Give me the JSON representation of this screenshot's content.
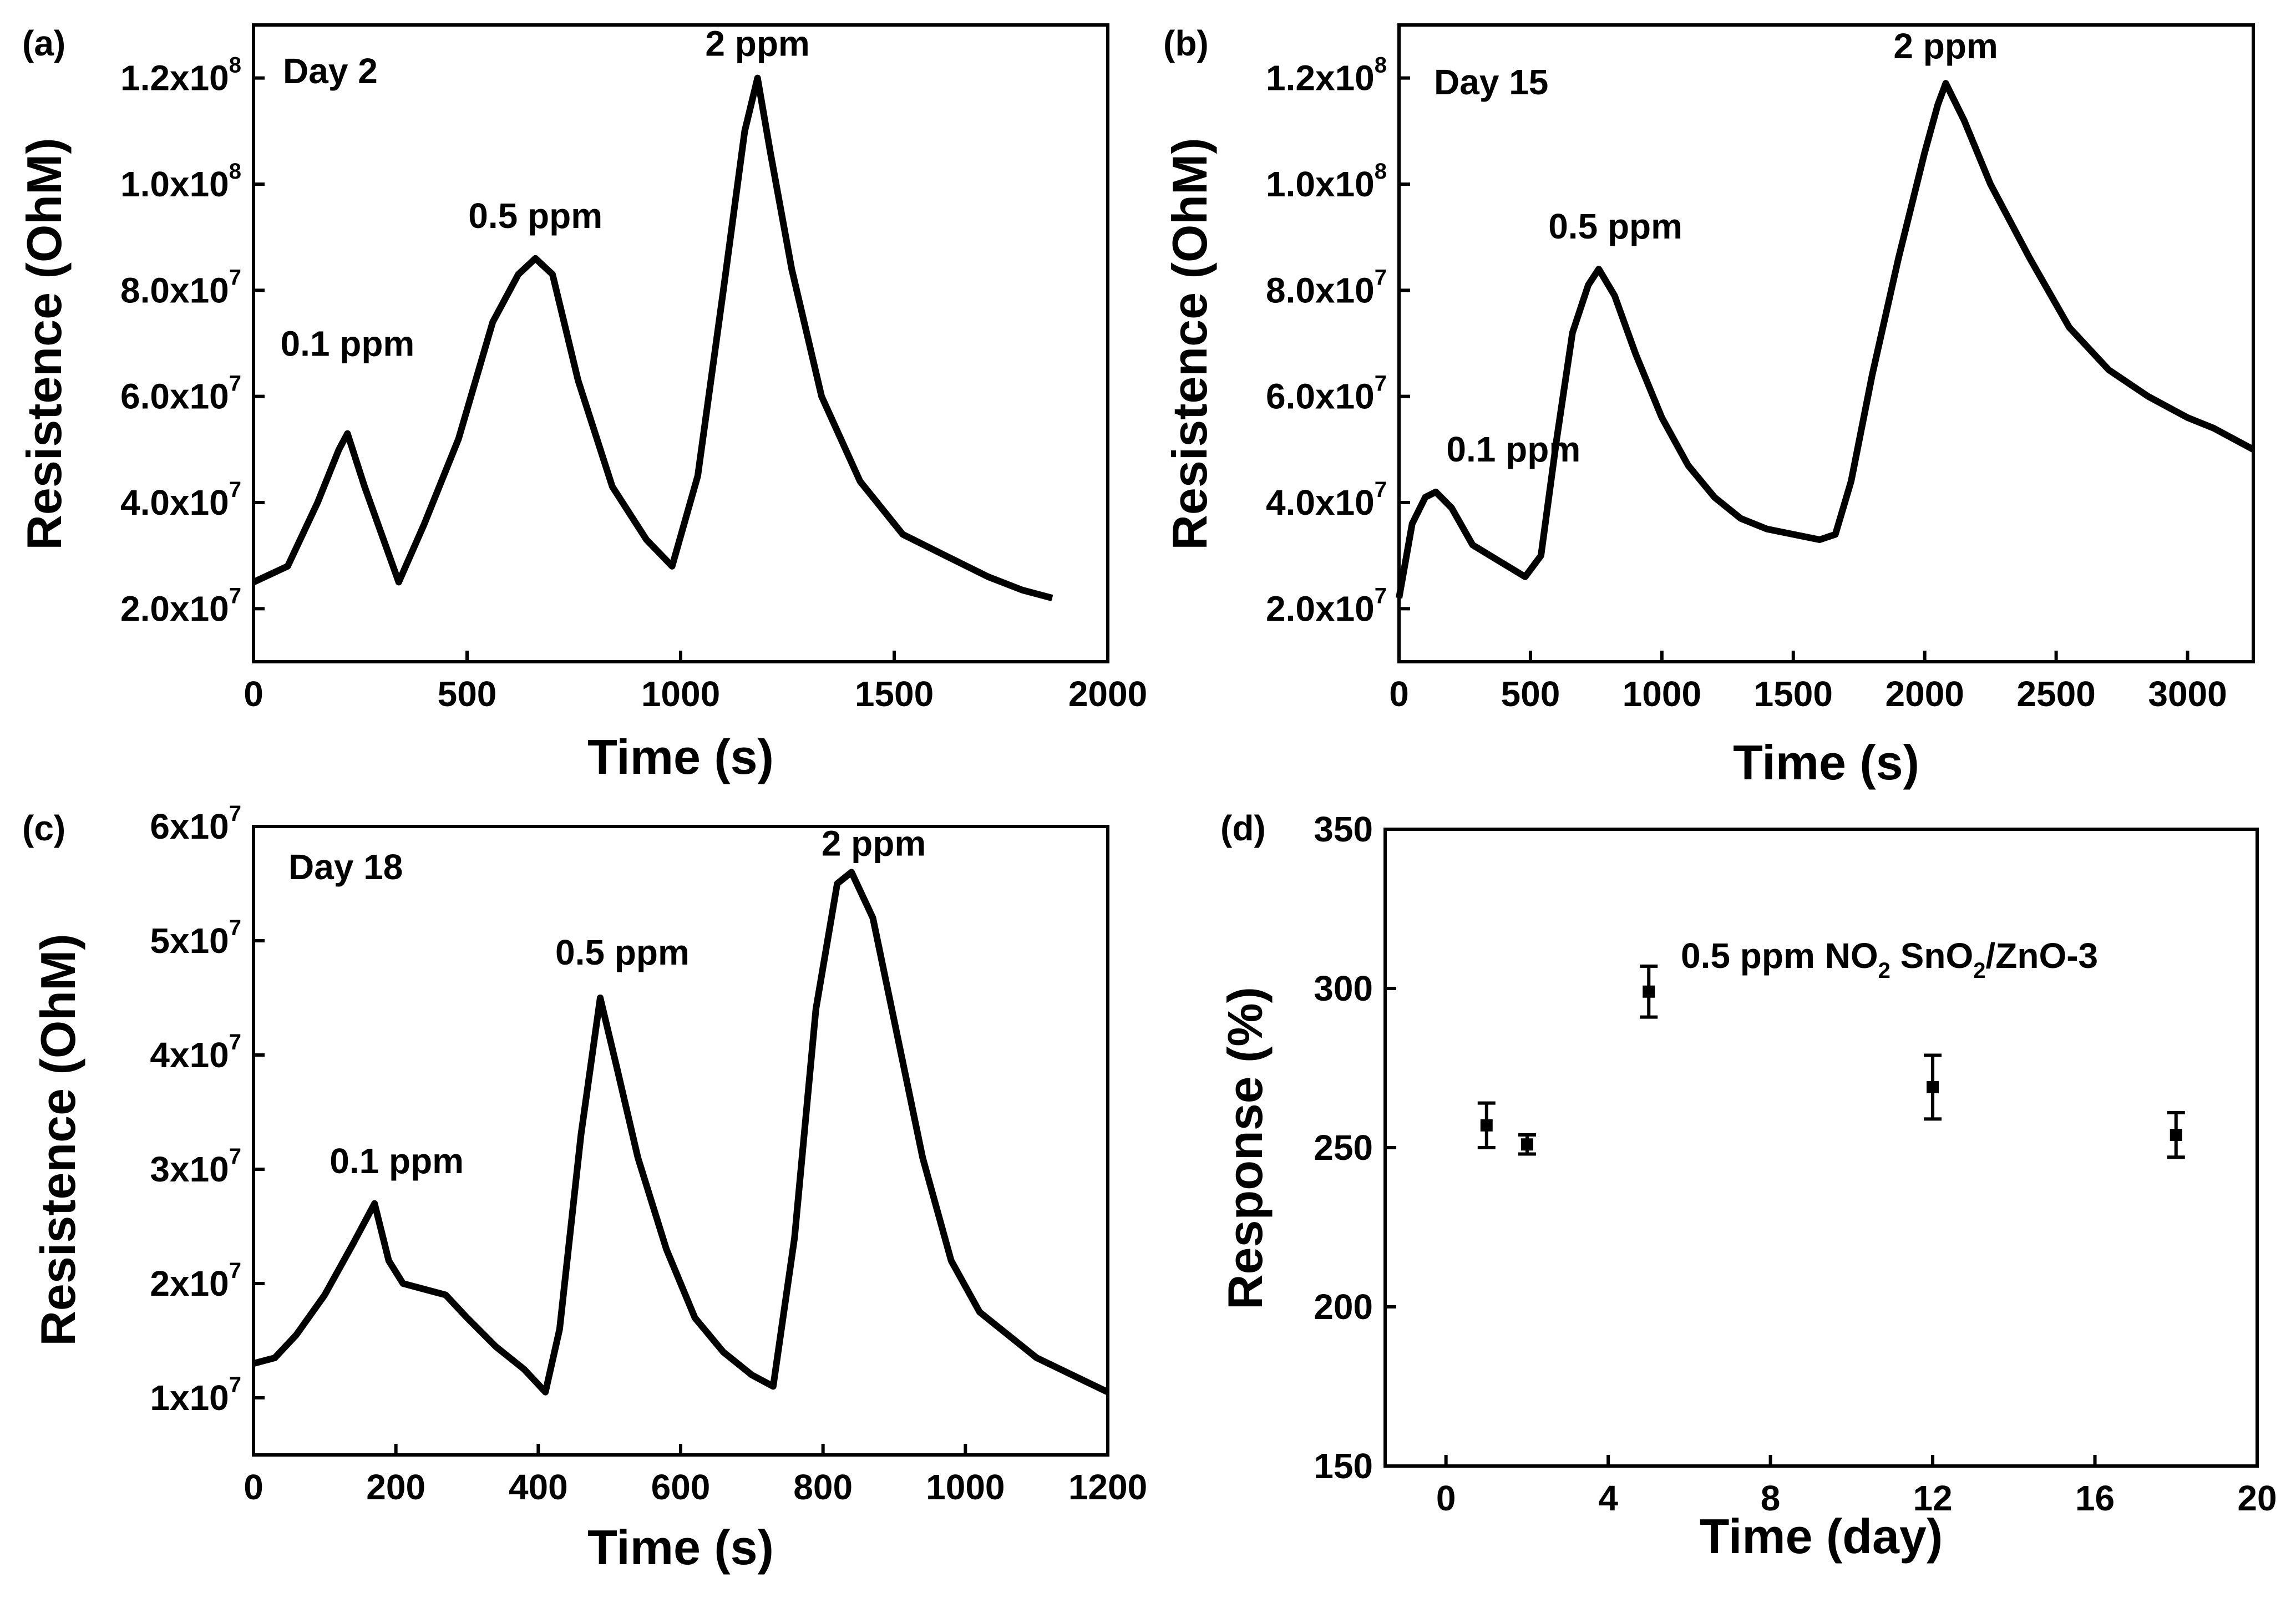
{
  "colors": {
    "line": "#000000",
    "background": "#ffffff"
  },
  "chart_data": [
    {
      "panel": "(a)",
      "type": "line",
      "annotation_day": "Day 2",
      "xlabel": "Time (s)",
      "ylabel": "Resistence (OhM)",
      "xlim": [
        0,
        2000
      ],
      "ylim": [
        10000000.0,
        130000000.0
      ],
      "xticks": [
        0,
        500,
        1000,
        1500,
        2000
      ],
      "yticks": [
        {
          "value": 20000000.0,
          "mantissa": "2.0x10",
          "exp": "7"
        },
        {
          "value": 40000000.0,
          "mantissa": "4.0x10",
          "exp": "7"
        },
        {
          "value": 60000000.0,
          "mantissa": "6.0x10",
          "exp": "7"
        },
        {
          "value": 80000000.0,
          "mantissa": "8.0x10",
          "exp": "7"
        },
        {
          "value": 100000000.0,
          "mantissa": "1.0x10",
          "exp": "8"
        },
        {
          "value": 120000000.0,
          "mantissa": "1.2x10",
          "exp": "8"
        }
      ],
      "peaks": [
        {
          "label": "0.1 ppm",
          "x": 220,
          "y": 53000000.0
        },
        {
          "label": "0.5 ppm",
          "x": 660,
          "y": 86000000.0
        },
        {
          "label": "2 ppm",
          "x": 1180,
          "y": 120000000.0
        }
      ],
      "x": [
        0,
        80,
        150,
        200,
        220,
        260,
        340,
        400,
        480,
        560,
        620,
        660,
        700,
        760,
        840,
        920,
        980,
        1040,
        1100,
        1150,
        1180,
        1210,
        1260,
        1330,
        1420,
        1520,
        1620,
        1720,
        1800,
        1870
      ],
      "y": [
        25000000.0,
        28000000.0,
        40000000.0,
        50000000.0,
        53000000.0,
        43000000.0,
        25000000.0,
        36000000.0,
        52000000.0,
        74000000.0,
        83000000.0,
        86000000.0,
        83000000.0,
        63000000.0,
        43000000.0,
        33000000.0,
        28000000.0,
        45000000.0,
        80000000.0,
        110000000.0,
        120000000.0,
        106000000.0,
        84000000.0,
        60000000.0,
        44000000.0,
        34000000.0,
        30000000.0,
        26000000.0,
        23500000.0,
        22000000.0
      ]
    },
    {
      "panel": "(b)",
      "type": "line",
      "annotation_day": "Day 15",
      "xlabel": "Time (s)",
      "ylabel": "Resistence (OhM)",
      "xlim": [
        0,
        3250
      ],
      "ylim": [
        10000000.0,
        130000000.0
      ],
      "xticks": [
        0,
        500,
        1000,
        1500,
        2000,
        2500,
        3000
      ],
      "yticks": [
        {
          "value": 20000000.0,
          "mantissa": "2.0x10",
          "exp": "7"
        },
        {
          "value": 40000000.0,
          "mantissa": "4.0x10",
          "exp": "7"
        },
        {
          "value": 60000000.0,
          "mantissa": "6.0x10",
          "exp": "7"
        },
        {
          "value": 80000000.0,
          "mantissa": "8.0x10",
          "exp": "7"
        },
        {
          "value": 100000000.0,
          "mantissa": "1.0x10",
          "exp": "8"
        },
        {
          "value": 120000000.0,
          "mantissa": "1.2x10",
          "exp": "8"
        }
      ],
      "peaks": [
        {
          "label": "0.1 ppm",
          "x": 140,
          "y": 42000000.0
        },
        {
          "label": "0.5 ppm",
          "x": 760,
          "y": 84000000.0
        },
        {
          "label": "2 ppm",
          "x": 2080,
          "y": 119000000.0
        }
      ],
      "x": [
        0,
        50,
        100,
        140,
        200,
        280,
        380,
        480,
        540,
        600,
        660,
        720,
        760,
        820,
        900,
        1000,
        1100,
        1200,
        1300,
        1400,
        1500,
        1600,
        1660,
        1720,
        1800,
        1900,
        2000,
        2050,
        2080,
        2150,
        2250,
        2400,
        2550,
        2700,
        2850,
        3000,
        3100,
        3250
      ],
      "y": [
        22000000.0,
        36000000.0,
        41000000.0,
        42000000.0,
        39000000.0,
        32000000.0,
        29000000.0,
        26000000.0,
        30000000.0,
        52000000.0,
        72000000.0,
        81000000.0,
        84000000.0,
        79000000.0,
        68000000.0,
        56000000.0,
        47000000.0,
        41000000.0,
        37000000.0,
        35000000.0,
        34000000.0,
        33000000.0,
        34000000.0,
        44000000.0,
        64000000.0,
        86000000.0,
        106000000.0,
        115000000.0,
        119000000.0,
        112000000.0,
        100000000.0,
        86000000.0,
        73000000.0,
        65000000.0,
        60000000.0,
        56000000.0,
        54000000.0,
        50000000.0
      ]
    },
    {
      "panel": "(c)",
      "type": "line",
      "annotation_day": "Day 18",
      "xlabel": "Time (s)",
      "ylabel": "Resistence (OhM)",
      "xlim": [
        0,
        1200
      ],
      "ylim": [
        5000000.0,
        60000000.0
      ],
      "xticks": [
        0,
        200,
        400,
        600,
        800,
        1000,
        1200
      ],
      "yticks": [
        {
          "value": 10000000.0,
          "mantissa": "1x10",
          "exp": "7"
        },
        {
          "value": 20000000.0,
          "mantissa": "2x10",
          "exp": "7"
        },
        {
          "value": 30000000.0,
          "mantissa": "3x10",
          "exp": "7"
        },
        {
          "value": 40000000.0,
          "mantissa": "4x10",
          "exp": "7"
        },
        {
          "value": 50000000.0,
          "mantissa": "5x10",
          "exp": "7"
        },
        {
          "value": 60000000.0,
          "mantissa": "6x10",
          "exp": "7"
        }
      ],
      "peaks": [
        {
          "label": "0.1 ppm",
          "x": 170,
          "y": 27000000.0
        },
        {
          "label": "0.5 ppm",
          "x": 487,
          "y": 45000000.0
        },
        {
          "label": "2 ppm",
          "x": 840,
          "y": 56000000.0
        }
      ],
      "x": [
        0,
        30,
        60,
        100,
        140,
        170,
        190,
        210,
        240,
        270,
        300,
        340,
        380,
        410,
        430,
        460,
        487,
        510,
        540,
        580,
        620,
        660,
        700,
        730,
        760,
        790,
        820,
        840,
        870,
        900,
        940,
        980,
        1020,
        1060,
        1100,
        1150,
        1200
      ],
      "y": [
        13000000.0,
        13500000.0,
        15500000.0,
        19000000.0,
        23500000.0,
        27000000.0,
        22000000.0,
        20000000.0,
        19500000.0,
        19000000.0,
        17000000.0,
        14500000.0,
        12500000.0,
        10500000.0,
        16000000.0,
        33000000.0,
        45000000.0,
        39000000.0,
        31000000.0,
        23000000.0,
        17000000.0,
        14000000.0,
        12000000.0,
        11000000.0,
        24000000.0,
        44000000.0,
        55000000.0,
        56000000.0,
        52000000.0,
        43000000.0,
        31000000.0,
        22000000.0,
        17500000.0,
        15500000.0,
        13500000.0,
        12000000.0,
        10500000.0
      ]
    },
    {
      "panel": "(d)",
      "type": "scatter",
      "annotation": {
        "main": "0.5 ppm NO",
        "sub1": "2",
        "mid": " SnO",
        "sub2": "2",
        "tail": "/ZnO-3"
      },
      "xlabel": "Time (day)",
      "ylabel": "Response (%)",
      "xlim": [
        -1.5,
        20
      ],
      "ylim": [
        150,
        350
      ],
      "xticks": [
        0,
        4,
        8,
        12,
        16,
        20
      ],
      "yticks": [
        150,
        200,
        250,
        300,
        350
      ],
      "points": [
        {
          "x": 1,
          "y": 257,
          "err": 7
        },
        {
          "x": 2,
          "y": 251,
          "err": 3
        },
        {
          "x": 5,
          "y": 299,
          "err": 8
        },
        {
          "x": 12,
          "y": 269,
          "err": 10
        },
        {
          "x": 18,
          "y": 254,
          "err": 7
        }
      ]
    }
  ],
  "panel_labels": [
    "(a)",
    "(b)",
    "(c)",
    "(d)"
  ]
}
